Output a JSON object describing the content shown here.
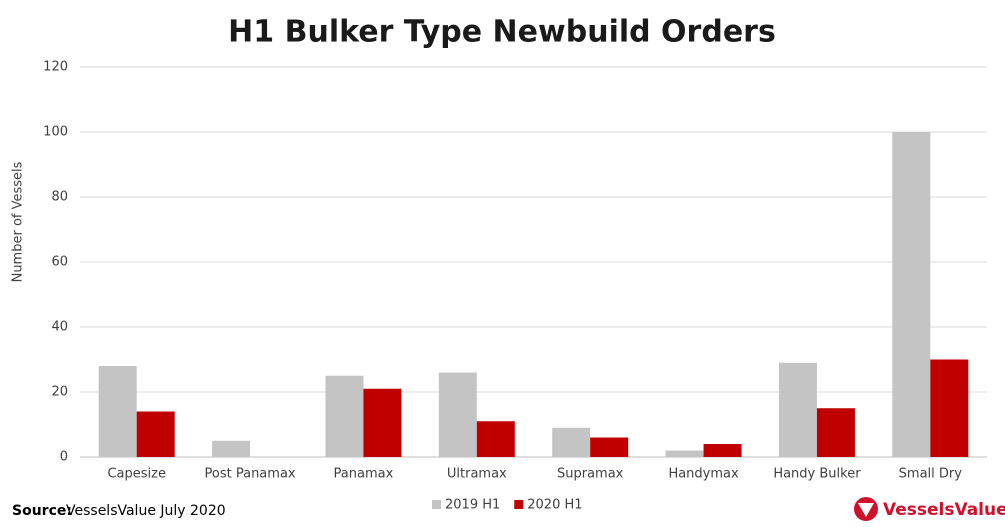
{
  "chart_data": {
    "type": "bar",
    "title": "H1 Bulker Type Newbuild Orders",
    "y_label": "Number of Vessels",
    "categories": [
      "Capesize",
      "Post Panamax",
      "Panamax",
      "Ultramax",
      "Supramax",
      "Handymax",
      "Handy Bulker",
      "Small Dry"
    ],
    "series": [
      {
        "name": "2019 H1",
        "color": "#c4c4c4",
        "values": [
          28,
          5,
          25,
          26,
          9,
          2,
          29,
          100
        ]
      },
      {
        "name": "2020 H1",
        "color": "#c00000",
        "values": [
          14,
          0,
          21,
          11,
          6,
          4,
          15,
          30
        ]
      }
    ],
    "ylim": [
      0,
      120
    ],
    "yticks": [
      0,
      20,
      40,
      60,
      80,
      100,
      120
    ],
    "grid": true,
    "legend": "bottom"
  },
  "source": {
    "label": "Source:",
    "text": "VesselsValue July 2020"
  },
  "logo": "VesselsValue"
}
